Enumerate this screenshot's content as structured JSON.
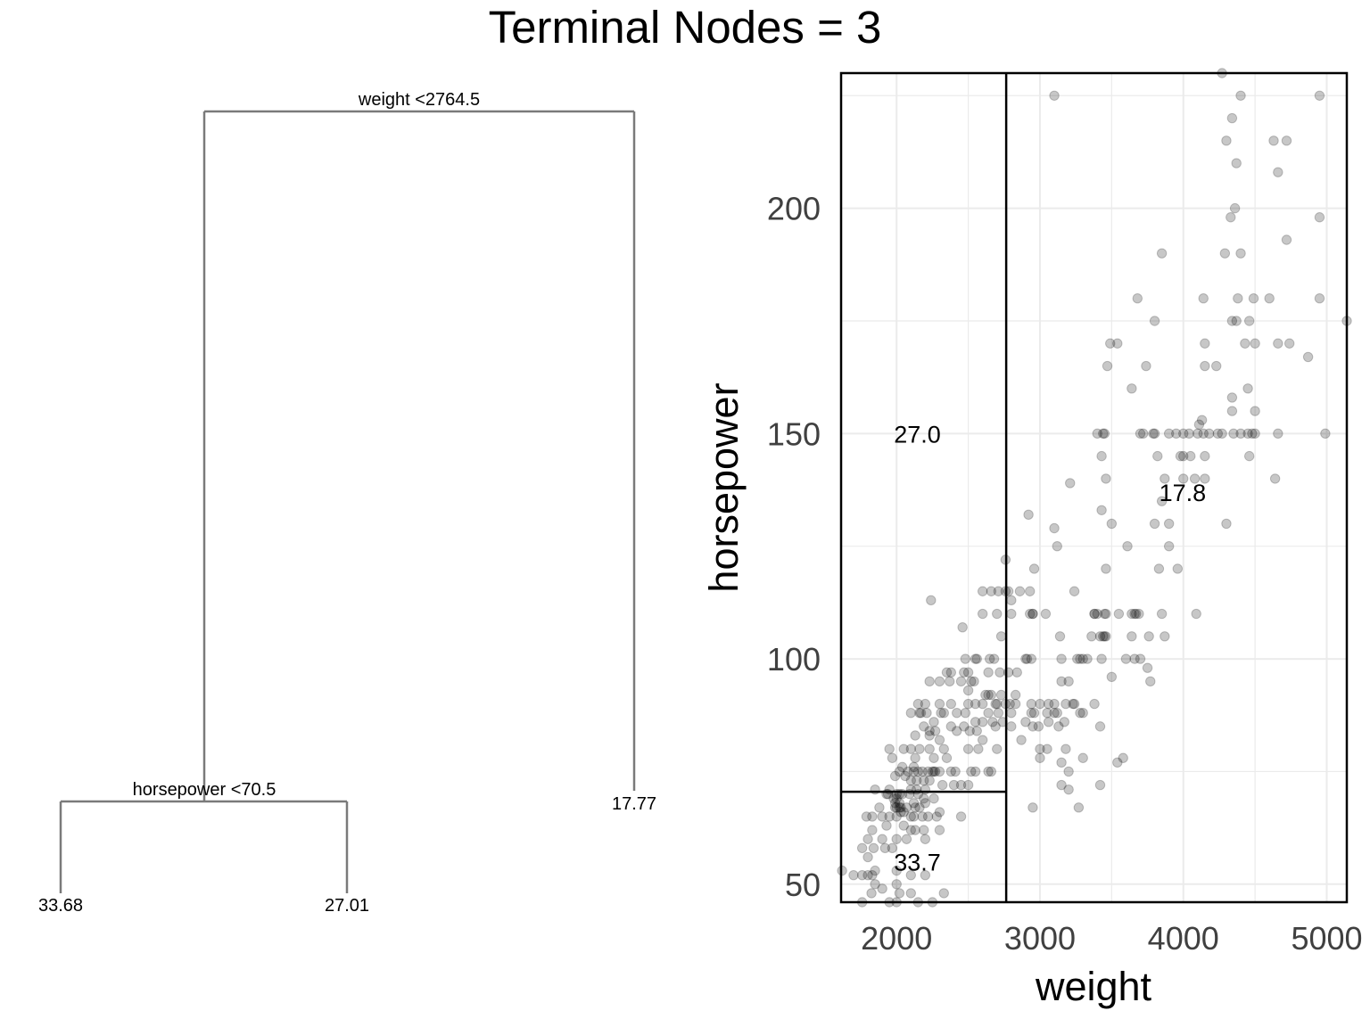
{
  "title": "Terminal Nodes = 3",
  "tree": {
    "root_split": "weight <2764.5",
    "left_split": "horsepower <70.5",
    "leaves": [
      "33.68",
      "27.01",
      "17.77"
    ]
  },
  "chart_data": {
    "type": "scatter",
    "xlabel": "weight",
    "ylabel": "horsepower",
    "xlim": [
      1613,
      5140
    ],
    "ylim": [
      46,
      230
    ],
    "xticks": [
      2000,
      3000,
      4000,
      5000
    ],
    "yticks": [
      50,
      100,
      150,
      200
    ],
    "grid": true,
    "point_color": "#000000",
    "point_opacity": 0.22,
    "splits": {
      "weight": 2764.5,
      "horsepower": 70.5
    },
    "region_labels": [
      {
        "label": "27.0",
        "x": 2000,
        "y": 150
      },
      {
        "label": "17.8",
        "x": 3850,
        "y": 137
      },
      {
        "label": "33.7",
        "x": 2000,
        "y": 55
      }
    ],
    "points": [
      [
        3100,
        225
      ],
      [
        4270,
        230
      ],
      [
        4400,
        225
      ],
      [
        4950,
        225
      ],
      [
        4340,
        220
      ],
      [
        4300,
        215
      ],
      [
        4630,
        215
      ],
      [
        4720,
        215
      ],
      [
        4370,
        210
      ],
      [
        4660,
        208
      ],
      [
        4360,
        200
      ],
      [
        4330,
        198
      ],
      [
        4950,
        198
      ],
      [
        4720,
        193
      ],
      [
        3850,
        190
      ],
      [
        4290,
        190
      ],
      [
        4400,
        190
      ],
      [
        4140,
        180
      ],
      [
        4600,
        180
      ],
      [
        3680,
        180
      ],
      [
        4380,
        180
      ],
      [
        4490,
        180
      ],
      [
        4950,
        180
      ],
      [
        3800,
        175
      ],
      [
        4340,
        175
      ],
      [
        4370,
        175
      ],
      [
        4460,
        175
      ],
      [
        5140,
        175
      ],
      [
        3540,
        170
      ],
      [
        3490,
        170
      ],
      [
        4150,
        170
      ],
      [
        4430,
        170
      ],
      [
        4500,
        170
      ],
      [
        4660,
        170
      ],
      [
        4740,
        170
      ],
      [
        4870,
        167
      ],
      [
        3470,
        165
      ],
      [
        3740,
        165
      ],
      [
        4150,
        165
      ],
      [
        4230,
        165
      ],
      [
        3640,
        160
      ],
      [
        4450,
        160
      ],
      [
        4340,
        158
      ],
      [
        4130,
        153
      ],
      [
        4110,
        152
      ],
      [
        4340,
        155
      ],
      [
        4500,
        155
      ],
      [
        3400,
        150
      ],
      [
        3440,
        150
      ],
      [
        3450,
        150
      ],
      [
        3700,
        150
      ],
      [
        3720,
        150
      ],
      [
        3790,
        150
      ],
      [
        3800,
        150
      ],
      [
        3900,
        150
      ],
      [
        3950,
        150
      ],
      [
        4000,
        150
      ],
      [
        4040,
        150
      ],
      [
        4100,
        150
      ],
      [
        4140,
        150
      ],
      [
        4180,
        150
      ],
      [
        4240,
        150
      ],
      [
        4270,
        150
      ],
      [
        4350,
        150
      ],
      [
        4400,
        150
      ],
      [
        4450,
        150
      ],
      [
        4480,
        150
      ],
      [
        4500,
        150
      ],
      [
        4660,
        150
      ],
      [
        4990,
        150
      ],
      [
        4000,
        145
      ],
      [
        4050,
        145
      ],
      [
        4150,
        145
      ],
      [
        4460,
        145
      ],
      [
        3820,
        145
      ],
      [
        3430,
        145
      ],
      [
        3980,
        145
      ],
      [
        4000,
        140
      ],
      [
        4080,
        140
      ],
      [
        4640,
        140
      ],
      [
        3460,
        140
      ],
      [
        3870,
        140
      ],
      [
        4150,
        140
      ],
      [
        3210,
        139
      ],
      [
        3850,
        135
      ],
      [
        3800,
        130
      ],
      [
        4300,
        130
      ],
      [
        3500,
        130
      ],
      [
        3900,
        130
      ],
      [
        2920,
        132
      ],
      [
        3430,
        133
      ],
      [
        3100,
        129
      ],
      [
        3610,
        125
      ],
      [
        3900,
        125
      ],
      [
        3120,
        125
      ],
      [
        2960,
        120
      ],
      [
        3460,
        120
      ],
      [
        3830,
        120
      ],
      [
        3960,
        120
      ],
      [
        2760,
        122
      ],
      [
        2710,
        115
      ],
      [
        2760,
        115
      ],
      [
        2780,
        115
      ],
      [
        2860,
        115
      ],
      [
        2600,
        115
      ],
      [
        2660,
        115
      ],
      [
        2800,
        113
      ],
      [
        2930,
        115
      ],
      [
        3240,
        115
      ],
      [
        2240,
        113
      ],
      [
        2950,
        110
      ],
      [
        3040,
        110
      ],
      [
        3380,
        110
      ],
      [
        3450,
        110
      ],
      [
        3550,
        110
      ],
      [
        3640,
        110
      ],
      [
        3690,
        110
      ],
      [
        3850,
        110
      ],
      [
        4090,
        110
      ],
      [
        3380,
        110
      ],
      [
        3400,
        110
      ],
      [
        3660,
        110
      ],
      [
        2930,
        110
      ],
      [
        2950,
        110
      ],
      [
        3670,
        110
      ],
      [
        3460,
        110
      ],
      [
        2600,
        110
      ],
      [
        2700,
        110
      ],
      [
        2800,
        110
      ],
      [
        3140,
        105
      ],
      [
        3360,
        105
      ],
      [
        3420,
        105
      ],
      [
        3450,
        105
      ],
      [
        3460,
        105
      ],
      [
        3640,
        105
      ],
      [
        3760,
        105
      ],
      [
        3870,
        105
      ],
      [
        2730,
        105
      ],
      [
        3440,
        105
      ],
      [
        2460,
        107
      ],
      [
        3260,
        100
      ],
      [
        3280,
        100
      ],
      [
        3300,
        100
      ],
      [
        3330,
        100
      ],
      [
        3600,
        100
      ],
      [
        3700,
        100
      ],
      [
        3660,
        100
      ],
      [
        2900,
        100
      ],
      [
        2910,
        100
      ],
      [
        2940,
        100
      ],
      [
        3430,
        100
      ],
      [
        3750,
        98
      ],
      [
        2550,
        100
      ],
      [
        2560,
        100
      ],
      [
        2650,
        100
      ],
      [
        2680,
        100
      ],
      [
        3150,
        100
      ],
      [
        2480,
        100
      ],
      [
        3770,
        95
      ],
      [
        2350,
        97
      ],
      [
        2380,
        97
      ],
      [
        2470,
        97
      ],
      [
        2500,
        97
      ],
      [
        2640,
        97
      ],
      [
        2720,
        97
      ],
      [
        2780,
        97
      ],
      [
        2840,
        97
      ],
      [
        3150,
        95
      ],
      [
        3200,
        95
      ],
      [
        3500,
        96
      ],
      [
        2230,
        95
      ],
      [
        2300,
        95
      ],
      [
        2370,
        95
      ],
      [
        2450,
        95
      ],
      [
        2520,
        95
      ],
      [
        2540,
        95
      ],
      [
        2730,
        92
      ],
      [
        2500,
        93
      ],
      [
        2620,
        92
      ],
      [
        2640,
        92
      ],
      [
        2660,
        92
      ],
      [
        2830,
        92
      ],
      [
        2690,
        90
      ],
      [
        2760,
        90
      ],
      [
        2790,
        90
      ],
      [
        2830,
        90
      ],
      [
        2940,
        90
      ],
      [
        3000,
        90
      ],
      [
        3060,
        90
      ],
      [
        3100,
        90
      ],
      [
        3180,
        90
      ],
      [
        3230,
        90
      ],
      [
        3240,
        90
      ],
      [
        3380,
        90
      ],
      [
        2150,
        90
      ],
      [
        2200,
        90
      ],
      [
        2300,
        90
      ],
      [
        2380,
        90
      ],
      [
        2500,
        90
      ],
      [
        2550,
        90
      ],
      [
        2600,
        90
      ],
      [
        2700,
        90
      ],
      [
        2160,
        88
      ],
      [
        2210,
        88
      ],
      [
        2330,
        88
      ],
      [
        2420,
        88
      ],
      [
        2480,
        88
      ],
      [
        2640,
        88
      ],
      [
        2710,
        88
      ],
      [
        2800,
        88
      ],
      [
        2940,
        88
      ],
      [
        2960,
        88
      ],
      [
        3050,
        88
      ],
      [
        3100,
        88
      ],
      [
        3120,
        88
      ],
      [
        3280,
        88
      ],
      [
        3300,
        88
      ],
      [
        2100,
        88
      ],
      [
        2170,
        88
      ],
      [
        2310,
        88
      ],
      [
        2260,
        86
      ],
      [
        2550,
        86
      ],
      [
        2600,
        86
      ],
      [
        2670,
        86
      ],
      [
        2740,
        86
      ],
      [
        2900,
        86
      ],
      [
        3060,
        86
      ],
      [
        3170,
        86
      ],
      [
        2190,
        85
      ],
      [
        2380,
        85
      ],
      [
        2470,
        85
      ],
      [
        2690,
        85
      ],
      [
        2800,
        85
      ],
      [
        2950,
        85
      ],
      [
        2990,
        85
      ],
      [
        3130,
        85
      ],
      [
        3420,
        85
      ],
      [
        2230,
        84
      ],
      [
        2270,
        84
      ],
      [
        2420,
        84
      ],
      [
        2510,
        84
      ],
      [
        2560,
        84
      ],
      [
        2130,
        83
      ],
      [
        2230,
        83
      ],
      [
        2300,
        82
      ],
      [
        2600,
        82
      ],
      [
        2870,
        82
      ],
      [
        3050,
        80
      ],
      [
        3000,
        80
      ],
      [
        3180,
        80
      ],
      [
        1950,
        80
      ],
      [
        2050,
        80
      ],
      [
        2100,
        80
      ],
      [
        2160,
        80
      ],
      [
        2230,
        80
      ],
      [
        2330,
        80
      ],
      [
        2500,
        80
      ],
      [
        2570,
        80
      ],
      [
        2700,
        80
      ],
      [
        3580,
        78
      ],
      [
        3000,
        78
      ],
      [
        3300,
        78
      ],
      [
        2350,
        78
      ],
      [
        1970,
        78
      ],
      [
        2130,
        78
      ],
      [
        2260,
        78
      ],
      [
        3150,
        77
      ],
      [
        3540,
        77
      ],
      [
        2120,
        76
      ],
      [
        2040,
        76
      ],
      [
        2080,
        75
      ],
      [
        2120,
        75
      ],
      [
        2150,
        75
      ],
      [
        2180,
        75
      ],
      [
        2220,
        75
      ],
      [
        2260,
        75
      ],
      [
        2300,
        75
      ],
      [
        2380,
        75
      ],
      [
        2410,
        75
      ],
      [
        2550,
        75
      ],
      [
        2660,
        75
      ],
      [
        3200,
        75
      ],
      [
        2020,
        75
      ],
      [
        2270,
        75
      ],
      [
        2520,
        75
      ],
      [
        2640,
        75
      ],
      [
        2060,
        74
      ],
      [
        1990,
        74
      ],
      [
        2140,
        73
      ],
      [
        2190,
        73
      ],
      [
        2320,
        72
      ],
      [
        2400,
        72
      ],
      [
        2450,
        72
      ],
      [
        2500,
        72
      ],
      [
        3150,
        72
      ],
      [
        3200,
        71
      ],
      [
        3420,
        72
      ],
      [
        1950,
        71
      ],
      [
        2100,
        71
      ],
      [
        2140,
        71
      ],
      [
        2200,
        71
      ],
      [
        1850,
        71
      ],
      [
        1940,
        70
      ],
      [
        2020,
        70
      ],
      [
        2150,
        70
      ],
      [
        1930,
        70
      ],
      [
        2040,
        70
      ],
      [
        2090,
        70
      ],
      [
        2190,
        69
      ],
      [
        1980,
        69
      ],
      [
        2000,
        69
      ],
      [
        2260,
        69
      ],
      [
        2120,
        68
      ],
      [
        1990,
        68
      ],
      [
        2020,
        68
      ],
      [
        1990,
        67
      ],
      [
        2000,
        67
      ],
      [
        2020,
        67
      ],
      [
        2070,
        67
      ],
      [
        2130,
        67
      ],
      [
        2160,
        67
      ],
      [
        2950,
        67
      ],
      [
        3270,
        67
      ],
      [
        1880,
        67
      ],
      [
        2300,
        66
      ],
      [
        1830,
        65
      ],
      [
        1900,
        65
      ],
      [
        1950,
        65
      ],
      [
        2100,
        65
      ],
      [
        2180,
        65
      ],
      [
        2220,
        65
      ],
      [
        2280,
        65
      ],
      [
        1790,
        65
      ],
      [
        2450,
        65
      ],
      [
        2000,
        65
      ],
      [
        2120,
        65
      ],
      [
        1930,
        63
      ],
      [
        2050,
        63
      ],
      [
        2190,
        62
      ],
      [
        2130,
        62
      ],
      [
        2300,
        62
      ],
      [
        1830,
        62
      ],
      [
        1800,
        60
      ],
      [
        1900,
        60
      ],
      [
        2000,
        60
      ],
      [
        2070,
        60
      ],
      [
        2200,
        60
      ],
      [
        1760,
        58
      ],
      [
        1840,
        58
      ],
      [
        1970,
        58
      ],
      [
        1920,
        58
      ],
      [
        1800,
        56
      ],
      [
        1620,
        53
      ],
      [
        1760,
        52
      ],
      [
        1800,
        52
      ],
      [
        1700,
        52
      ],
      [
        1830,
        52
      ],
      [
        2100,
        52
      ],
      [
        2200,
        52
      ],
      [
        1600,
        48
      ],
      [
        1825,
        48
      ],
      [
        1900,
        49
      ],
      [
        2020,
        48
      ],
      [
        2100,
        48
      ],
      [
        2330,
        48
      ],
      [
        1760,
        46
      ],
      [
        1950,
        46
      ],
      [
        2000,
        46
      ],
      [
        2150,
        46
      ],
      [
        2250,
        46
      ],
      [
        2000,
        50
      ],
      [
        1850,
        50
      ],
      [
        2000,
        53
      ],
      [
        1850,
        53
      ],
      [
        2200,
        68
      ],
      [
        2030,
        66
      ],
      [
        2100,
        62
      ],
      [
        2230,
        73
      ],
      [
        2250,
        75
      ],
      [
        2000,
        70
      ],
      [
        2050,
        66
      ],
      [
        2100,
        73
      ],
      [
        2030,
        67
      ]
    ]
  }
}
